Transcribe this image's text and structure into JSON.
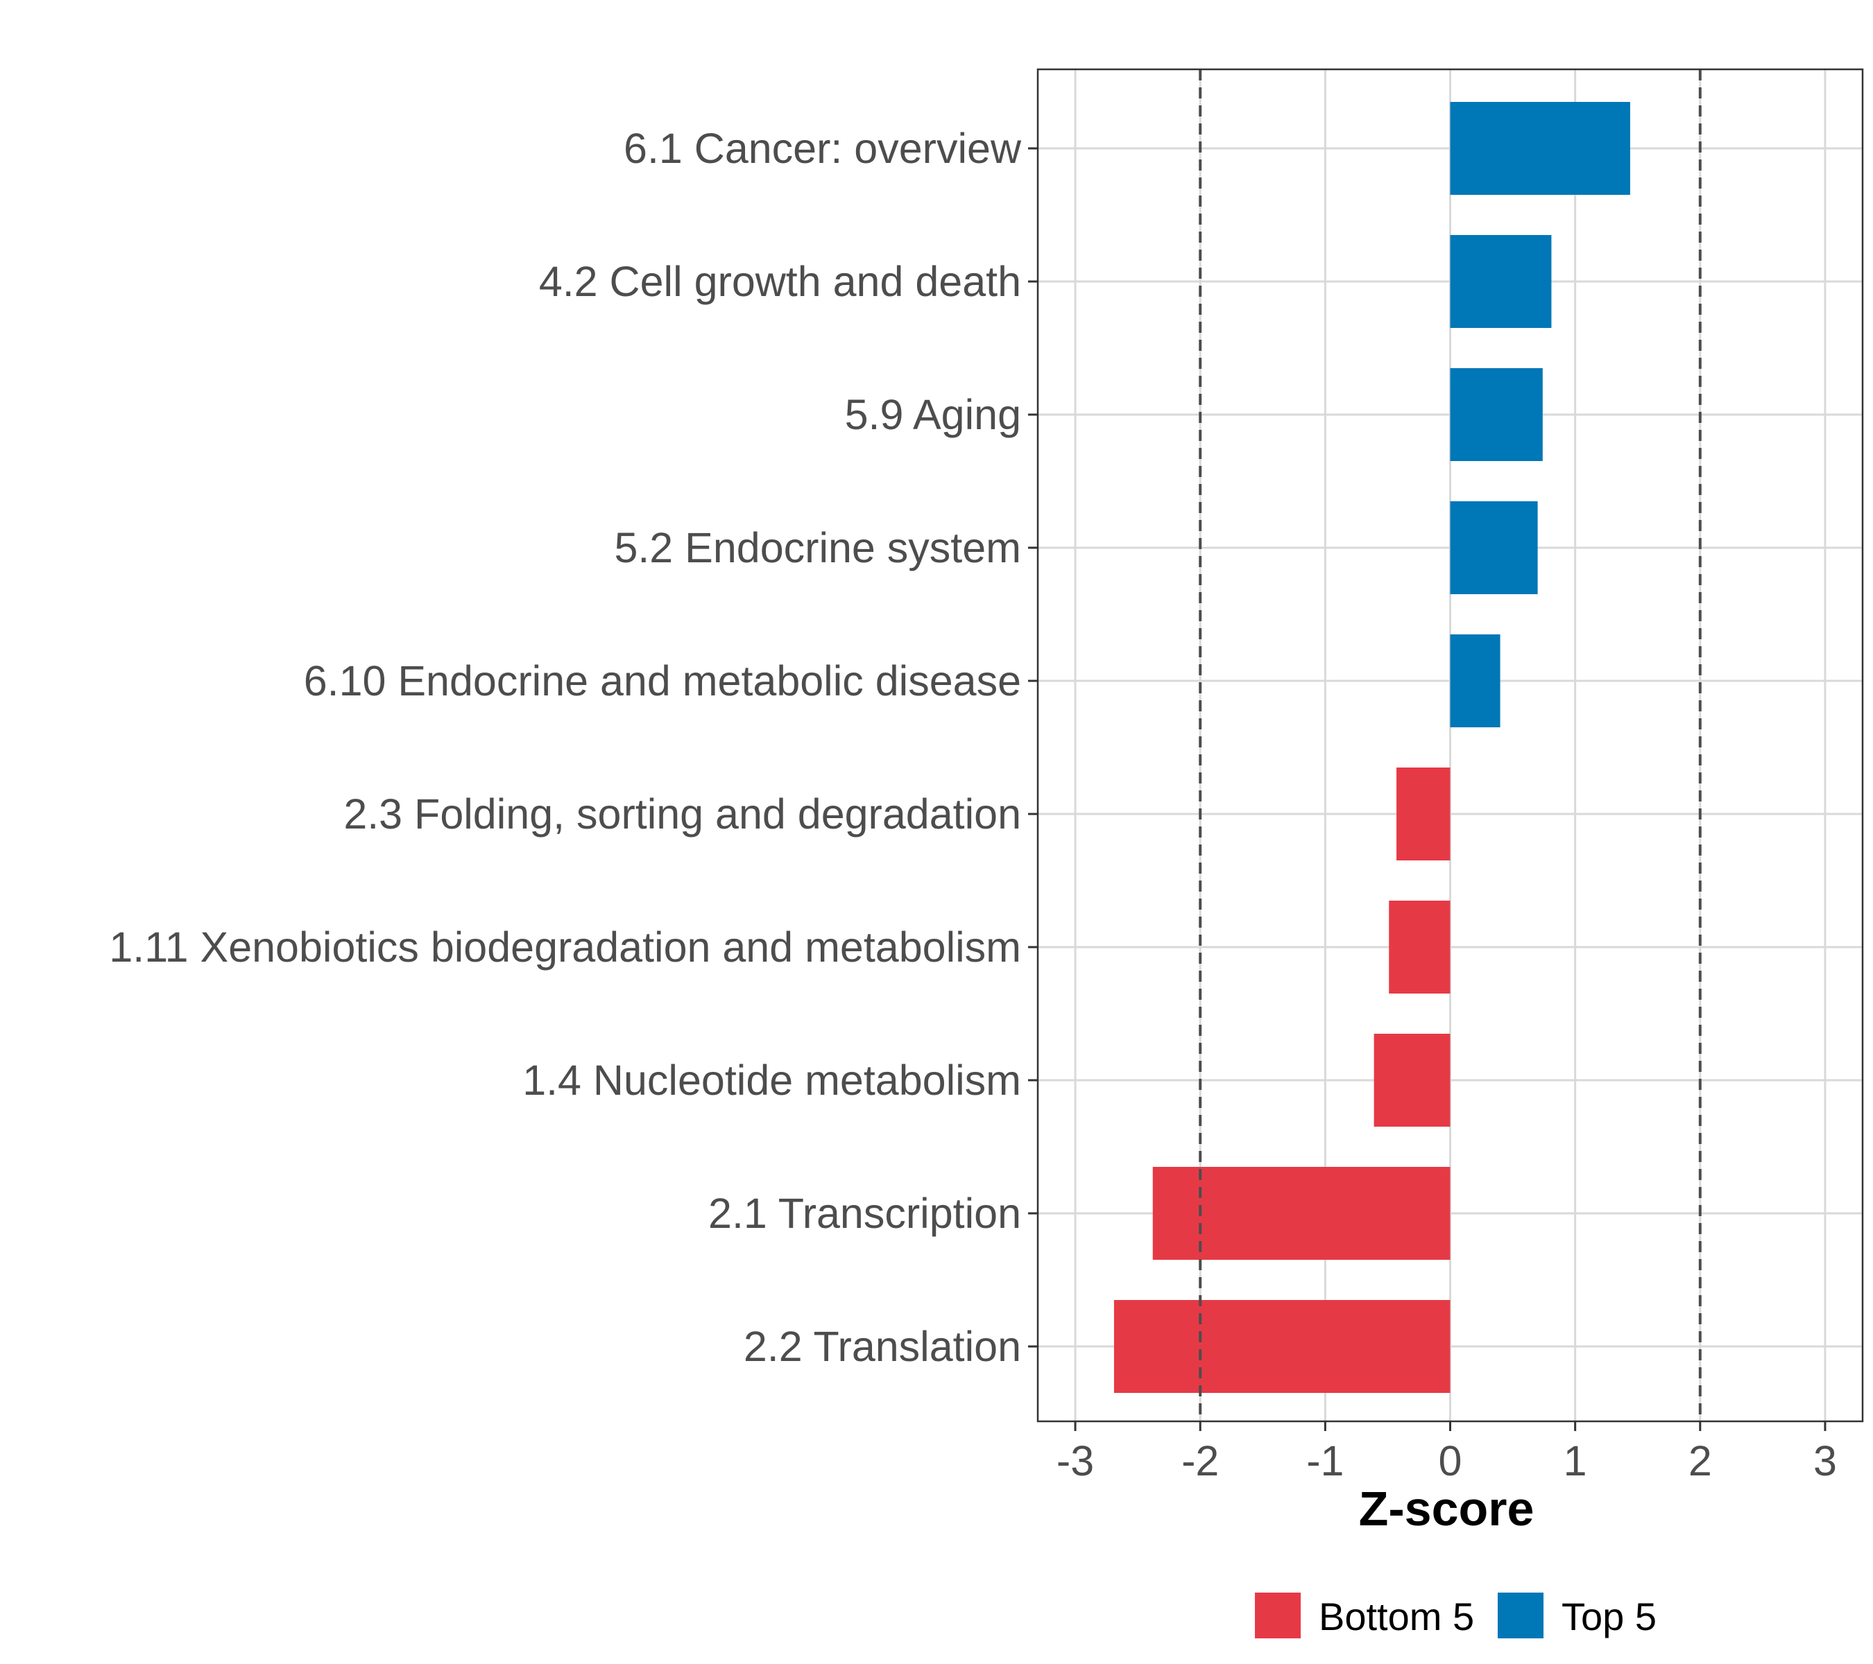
{
  "chart_data": {
    "type": "bar",
    "orientation": "horizontal",
    "title": "",
    "xlabel": "Z-score",
    "ylabel": "",
    "xlim": [
      -3.3,
      3.3
    ],
    "xticks": [
      -3,
      -2,
      -1,
      0,
      1,
      2,
      3
    ],
    "xtick_labels": [
      "-3",
      "-2",
      "-1",
      "0",
      "1",
      "2",
      "3"
    ],
    "reference_lines": [
      -2,
      2
    ],
    "grid": true,
    "legend_position": "bottom",
    "groups": [
      {
        "name": "Bottom 5",
        "color": "#e63946"
      },
      {
        "name": "Top 5",
        "color": "#0077b6"
      }
    ],
    "categories": [
      "6.1 Cancer: overview",
      "4.2 Cell growth and death",
      "5.9 Aging",
      "5.2 Endocrine system",
      "6.10 Endocrine and metabolic disease",
      "2.3 Folding, sorting and degradation",
      "1.11 Xenobiotics biodegradation and metabolism",
      "1.4 Nucleotide metabolism",
      "2.1 Transcription",
      "2.2 Translation"
    ],
    "values": [
      1.44,
      0.81,
      0.74,
      0.7,
      0.4,
      -0.43,
      -0.49,
      -0.61,
      -2.38,
      -2.69
    ],
    "group": [
      "Top 5",
      "Top 5",
      "Top 5",
      "Top 5",
      "Top 5",
      "Bottom 5",
      "Bottom 5",
      "Bottom 5",
      "Bottom 5",
      "Bottom 5"
    ]
  }
}
